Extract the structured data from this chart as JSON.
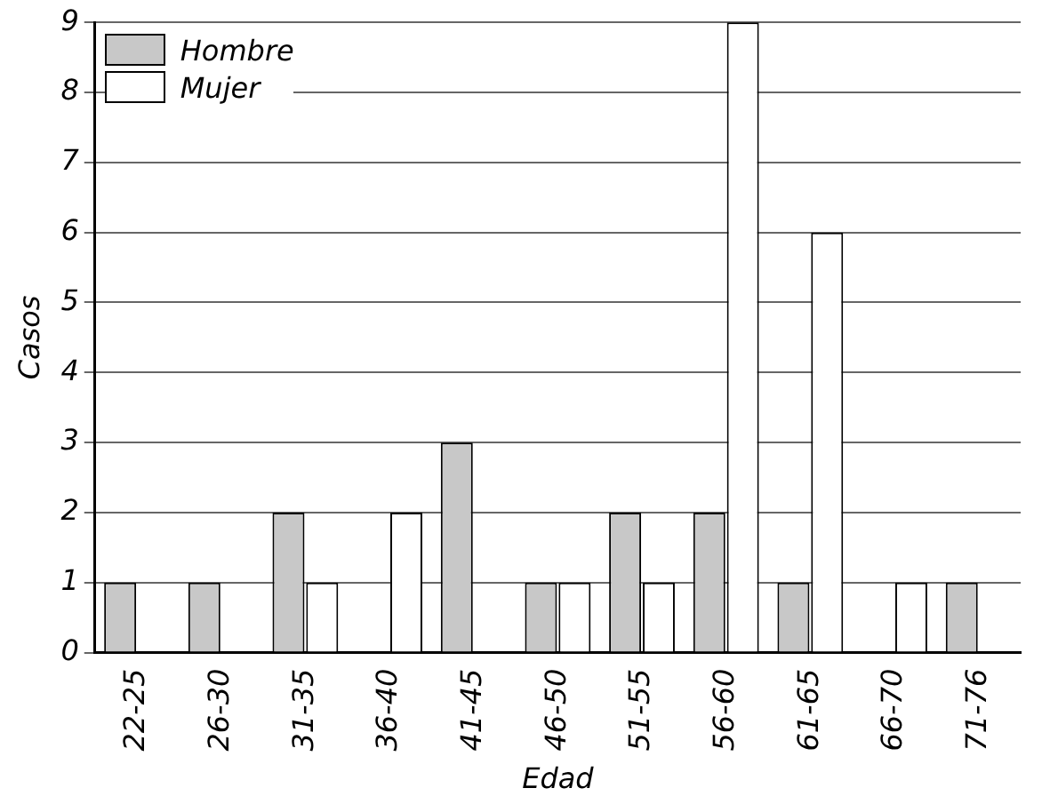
{
  "chart_data": {
    "type": "bar",
    "xlabel": "Edad",
    "ylabel": "Casos",
    "categories": [
      "22-25",
      "26-30",
      "31-35",
      "36-40",
      "41-45",
      "46-50",
      "51-55",
      "56-60",
      "61-65",
      "66-70",
      "71-76"
    ],
    "series": [
      {
        "name": "Hombre",
        "color": "#c8c8c8",
        "values": [
          1,
          1,
          2,
          0,
          3,
          1,
          2,
          2,
          1,
          0,
          1
        ]
      },
      {
        "name": "Mujer",
        "color": "#ffffff",
        "values": [
          0,
          0,
          1,
          2,
          0,
          1,
          1,
          9,
          6,
          1,
          0
        ]
      }
    ],
    "ylim": [
      0,
      9
    ],
    "yticks": [
      0,
      1,
      2,
      3,
      4,
      5,
      6,
      7,
      8,
      9
    ],
    "grid": "y",
    "legend": "top left"
  }
}
